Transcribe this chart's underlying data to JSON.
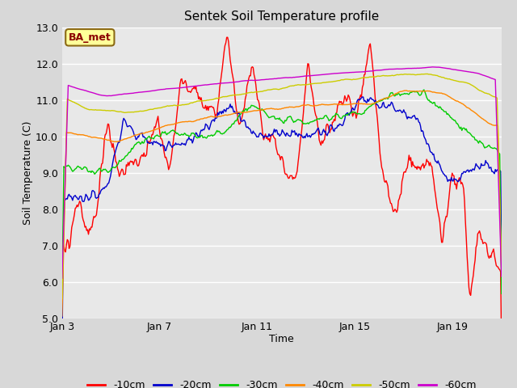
{
  "title": "Sentek Soil Temperature profile",
  "xlabel": "Time",
  "ylabel": "Soil Temperature (C)",
  "ylim": [
    5.0,
    13.0
  ],
  "yticks": [
    5.0,
    6.0,
    7.0,
    8.0,
    9.0,
    10.0,
    11.0,
    12.0,
    13.0
  ],
  "xtick_labels": [
    "Jan 3",
    "Jan 7",
    "Jan 11",
    "Jan 15",
    "Jan 19"
  ],
  "fig_facecolor": "#d8d8d8",
  "plot_facecolor": "#e8e8e8",
  "annotation_text": "BA_met",
  "annotation_color": "#8B0000",
  "annotation_bg": "#FFFF99",
  "annotation_edge": "#8B6914",
  "series_colors": {
    "-10cm": "#ff0000",
    "-20cm": "#0000cc",
    "-30cm": "#00cc00",
    "-40cm": "#ff8800",
    "-50cm": "#cccc00",
    "-60cm": "#cc00cc"
  },
  "legend_labels": [
    "-10cm",
    "-20cm",
    "-30cm",
    "-40cm",
    "-50cm",
    "-60cm"
  ]
}
